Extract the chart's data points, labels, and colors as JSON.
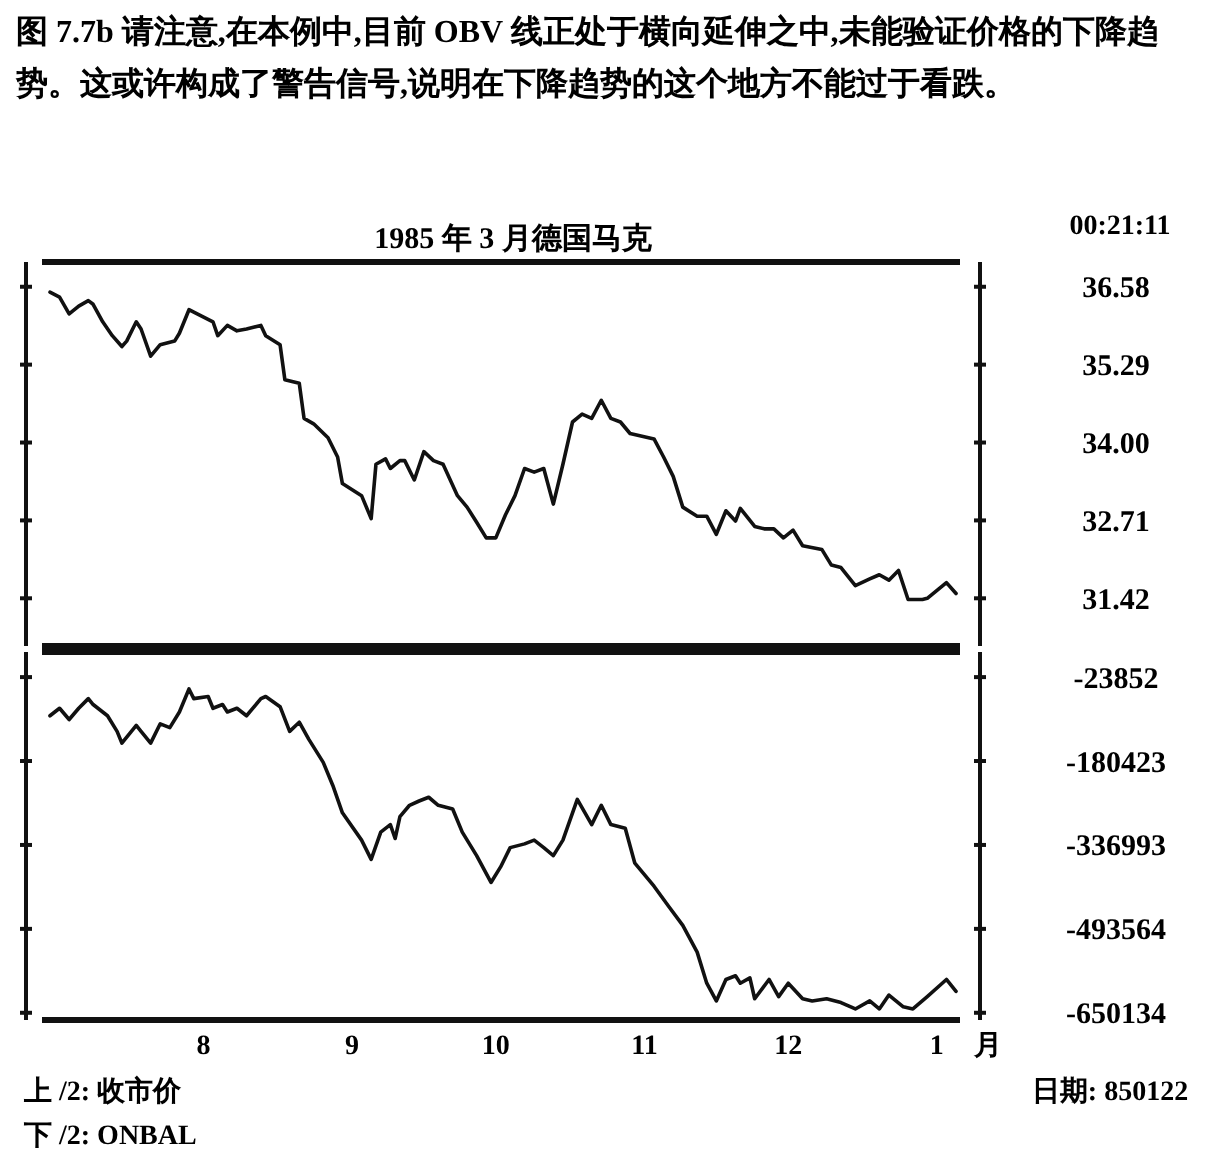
{
  "chart_data": [
    {
      "type": "line",
      "title": "图 7.7b  请注意,在本例中,目前 OBV 线正处于横向延伸之中,未能验证价格的下降趋势。这或许构成了警告信号,说明在下降趋势的这个地方不能过于看跌。",
      "subtitle": "1985 年 3 月德国马克",
      "annotations": [
        "00:21:11"
      ],
      "x": [
        "1984-06-30",
        "1984-07-02",
        "1984-07-04",
        "1984-07-06",
        "1984-07-08",
        "1984-07-09",
        "1984-07-11",
        "1984-07-13",
        "1984-07-15",
        "1984-07-16",
        "1984-07-18",
        "1984-07-19",
        "1984-07-21",
        "1984-07-23",
        "1984-07-26",
        "1984-07-27",
        "1984-07-29",
        "1984-07-30",
        "1984-08-03",
        "1984-08-04",
        "1984-08-06",
        "1984-08-08",
        "1984-08-10",
        "1984-08-13",
        "1984-08-14",
        "1984-08-17",
        "1984-08-18",
        "1984-08-21",
        "1984-08-22",
        "1984-08-24",
        "1984-08-27",
        "1984-08-29",
        "1984-08-30",
        "1984-09-03",
        "1984-09-05",
        "1984-09-06",
        "1984-09-08",
        "1984-09-09",
        "1984-09-11",
        "1984-09-12",
        "1984-09-14",
        "1984-09-16",
        "1984-09-18",
        "1984-09-20",
        "1984-09-23",
        "1984-09-25",
        "1984-09-27",
        "1984-09-29",
        "1984-10-01",
        "1984-10-03",
        "1984-10-05",
        "1984-10-07",
        "1984-10-09",
        "1984-10-11",
        "1984-10-13",
        "1984-10-15",
        "1984-10-17",
        "1984-10-19",
        "1984-10-21",
        "1984-10-23",
        "1984-10-25",
        "1984-10-27",
        "1984-10-29",
        "1984-11-03",
        "1984-11-05",
        "1984-11-07",
        "1984-11-09",
        "1984-11-12",
        "1984-11-14",
        "1984-11-16",
        "1984-11-18",
        "1984-11-20",
        "1984-11-21",
        "1984-11-24",
        "1984-11-26",
        "1984-11-28",
        "1984-11-30",
        "1984-12-02",
        "1984-12-04",
        "1984-12-08",
        "1984-12-10",
        "1984-12-12",
        "1984-12-15",
        "1984-12-18",
        "1984-12-20",
        "1984-12-22",
        "1984-12-24",
        "1984-12-26",
        "1984-12-29",
        "1984-12-30",
        "1985-01-03",
        "1985-01-05"
      ],
      "series": [
        {
          "color": "#111111",
          "values": [
            36.49,
            36.41,
            36.13,
            36.26,
            36.35,
            36.29,
            36.0,
            35.77,
            35.59,
            35.68,
            36.0,
            35.88,
            35.43,
            35.62,
            35.68,
            35.81,
            36.2,
            36.16,
            36.0,
            35.77,
            35.94,
            35.85,
            35.88,
            35.94,
            35.77,
            35.62,
            35.04,
            34.98,
            34.4,
            34.31,
            34.08,
            33.76,
            33.32,
            33.12,
            32.74,
            33.64,
            33.73,
            33.57,
            33.7,
            33.7,
            33.38,
            33.85,
            33.7,
            33.64,
            33.12,
            32.93,
            32.68,
            32.42,
            32.42,
            32.8,
            33.12,
            33.57,
            33.51,
            33.57,
            32.98,
            33.64,
            34.34,
            34.47,
            34.4,
            34.7,
            34.4,
            34.34,
            34.15,
            34.06,
            33.76,
            33.44,
            32.93,
            32.78,
            32.78,
            32.48,
            32.87,
            32.7,
            32.91,
            32.61,
            32.57,
            32.57,
            32.42,
            32.55,
            32.29,
            32.23,
            31.97,
            31.93,
            31.63,
            31.74,
            31.81,
            31.72,
            31.88,
            31.4,
            31.4,
            31.42,
            31.68,
            31.5
          ]
        }
      ],
      "xlim": [
        "1984-06-25",
        "1985-01-10"
      ],
      "ylim": [
        30.63,
        36.99
      ],
      "yticks": [
        36.58,
        35.29,
        {
          "value": 34,
          "label": "34.00"
        },
        32.71,
        31.42
      ],
      "tick_labels": "y"
    },
    {
      "type": "line",
      "xlabel": "月",
      "annotations": [
        "上 /2: 收市价",
        "下 /2: ONBAL",
        "日期: 850122"
      ],
      "x": [
        "1984-06-30",
        "1984-07-02",
        "1984-07-04",
        "1984-07-06",
        "1984-07-08",
        "1984-07-09",
        "1984-07-12",
        "1984-07-14",
        "1984-07-15",
        "1984-07-18",
        "1984-07-19",
        "1984-07-21",
        "1984-07-23",
        "1984-07-25",
        "1984-07-27",
        "1984-07-29",
        "1984-07-30",
        "1984-08-02",
        "1984-08-03",
        "1984-08-05",
        "1984-08-06",
        "1984-08-08",
        "1984-08-10",
        "1984-08-13",
        "1984-08-14",
        "1984-08-17",
        "1984-08-19",
        "1984-08-21",
        "1984-08-23",
        "1984-08-26",
        "1984-08-28",
        "1984-08-30",
        "1984-09-03",
        "1984-09-05",
        "1984-09-07",
        "1984-09-09",
        "1984-09-10",
        "1984-09-11",
        "1984-09-13",
        "1984-09-15",
        "1984-09-17",
        "1984-09-19",
        "1984-09-22",
        "1984-09-24",
        "1984-09-27",
        "1984-09-30",
        "1984-10-02",
        "1984-10-04",
        "1984-10-07",
        "1984-10-09",
        "1984-10-11",
        "1984-10-13",
        "1984-10-15",
        "1984-10-18",
        "1984-10-21",
        "1984-10-23",
        "1984-10-25",
        "1984-10-28",
        "1984-10-30",
        "1984-11-03",
        "1984-11-06",
        "1984-11-09",
        "1984-11-12",
        "1984-11-14",
        "1984-11-16",
        "1984-11-18",
        "1984-11-20",
        "1984-11-21",
        "1984-11-23",
        "1984-11-24",
        "1984-11-27",
        "1984-11-29",
        "1984-12-01",
        "1984-12-04",
        "1984-12-06",
        "1984-12-09",
        "1984-12-12",
        "1984-12-15",
        "1984-12-18",
        "1984-12-20",
        "1984-12-22",
        "1984-12-25",
        "1984-12-27",
        "1984-12-30",
        "1985-01-03",
        "1985-01-05"
      ],
      "series": [
        {
          "color": "#111111",
          "values": [
            -96000,
            -82000,
            -103000,
            -82000,
            -64000,
            -75000,
            -96000,
            -125000,
            -147000,
            -114000,
            -125000,
            -147000,
            -111000,
            -118000,
            -89000,
            -46000,
            -64000,
            -60000,
            -82000,
            -75000,
            -89000,
            -82000,
            -96000,
            -64000,
            -60000,
            -79000,
            -125000,
            -108000,
            -140000,
            -183000,
            -226000,
            -277000,
            -328000,
            -364000,
            -313000,
            -299000,
            -325000,
            -284000,
            -263000,
            -255000,
            -248000,
            -263000,
            -270000,
            -313000,
            -357000,
            -407000,
            -378000,
            -342000,
            -335000,
            -328000,
            -342000,
            -357000,
            -328000,
            -252000,
            -299000,
            -263000,
            -299000,
            -306000,
            -371000,
            -414000,
            -451000,
            -487000,
            -537000,
            -595000,
            -628000,
            -588000,
            -581000,
            -595000,
            -585000,
            -624000,
            -588000,
            -620000,
            -595000,
            -624000,
            -628000,
            -624000,
            -631000,
            -643000,
            -628000,
            -643000,
            -617000,
            -639000,
            -643000,
            -620000,
            -588000,
            -610000
          ]
        }
      ],
      "xlim": [
        "1984-06-25",
        "1985-01-10"
      ],
      "xticks": [
        {
          "value": "1984-08-01",
          "label": "8"
        },
        {
          "value": "1984-09-01",
          "label": "9"
        },
        {
          "value": "1984-10-01",
          "label": "10"
        },
        {
          "value": "1984-11-01",
          "label": "11"
        },
        {
          "value": "1984-12-01",
          "label": "12"
        },
        {
          "value": "1985-01-01",
          "label": "1"
        }
      ],
      "ylim": [
        -663600,
        23000
      ],
      "yticks": [
        -23852,
        -180423,
        -336993,
        -493564,
        -650134
      ]
    }
  ]
}
